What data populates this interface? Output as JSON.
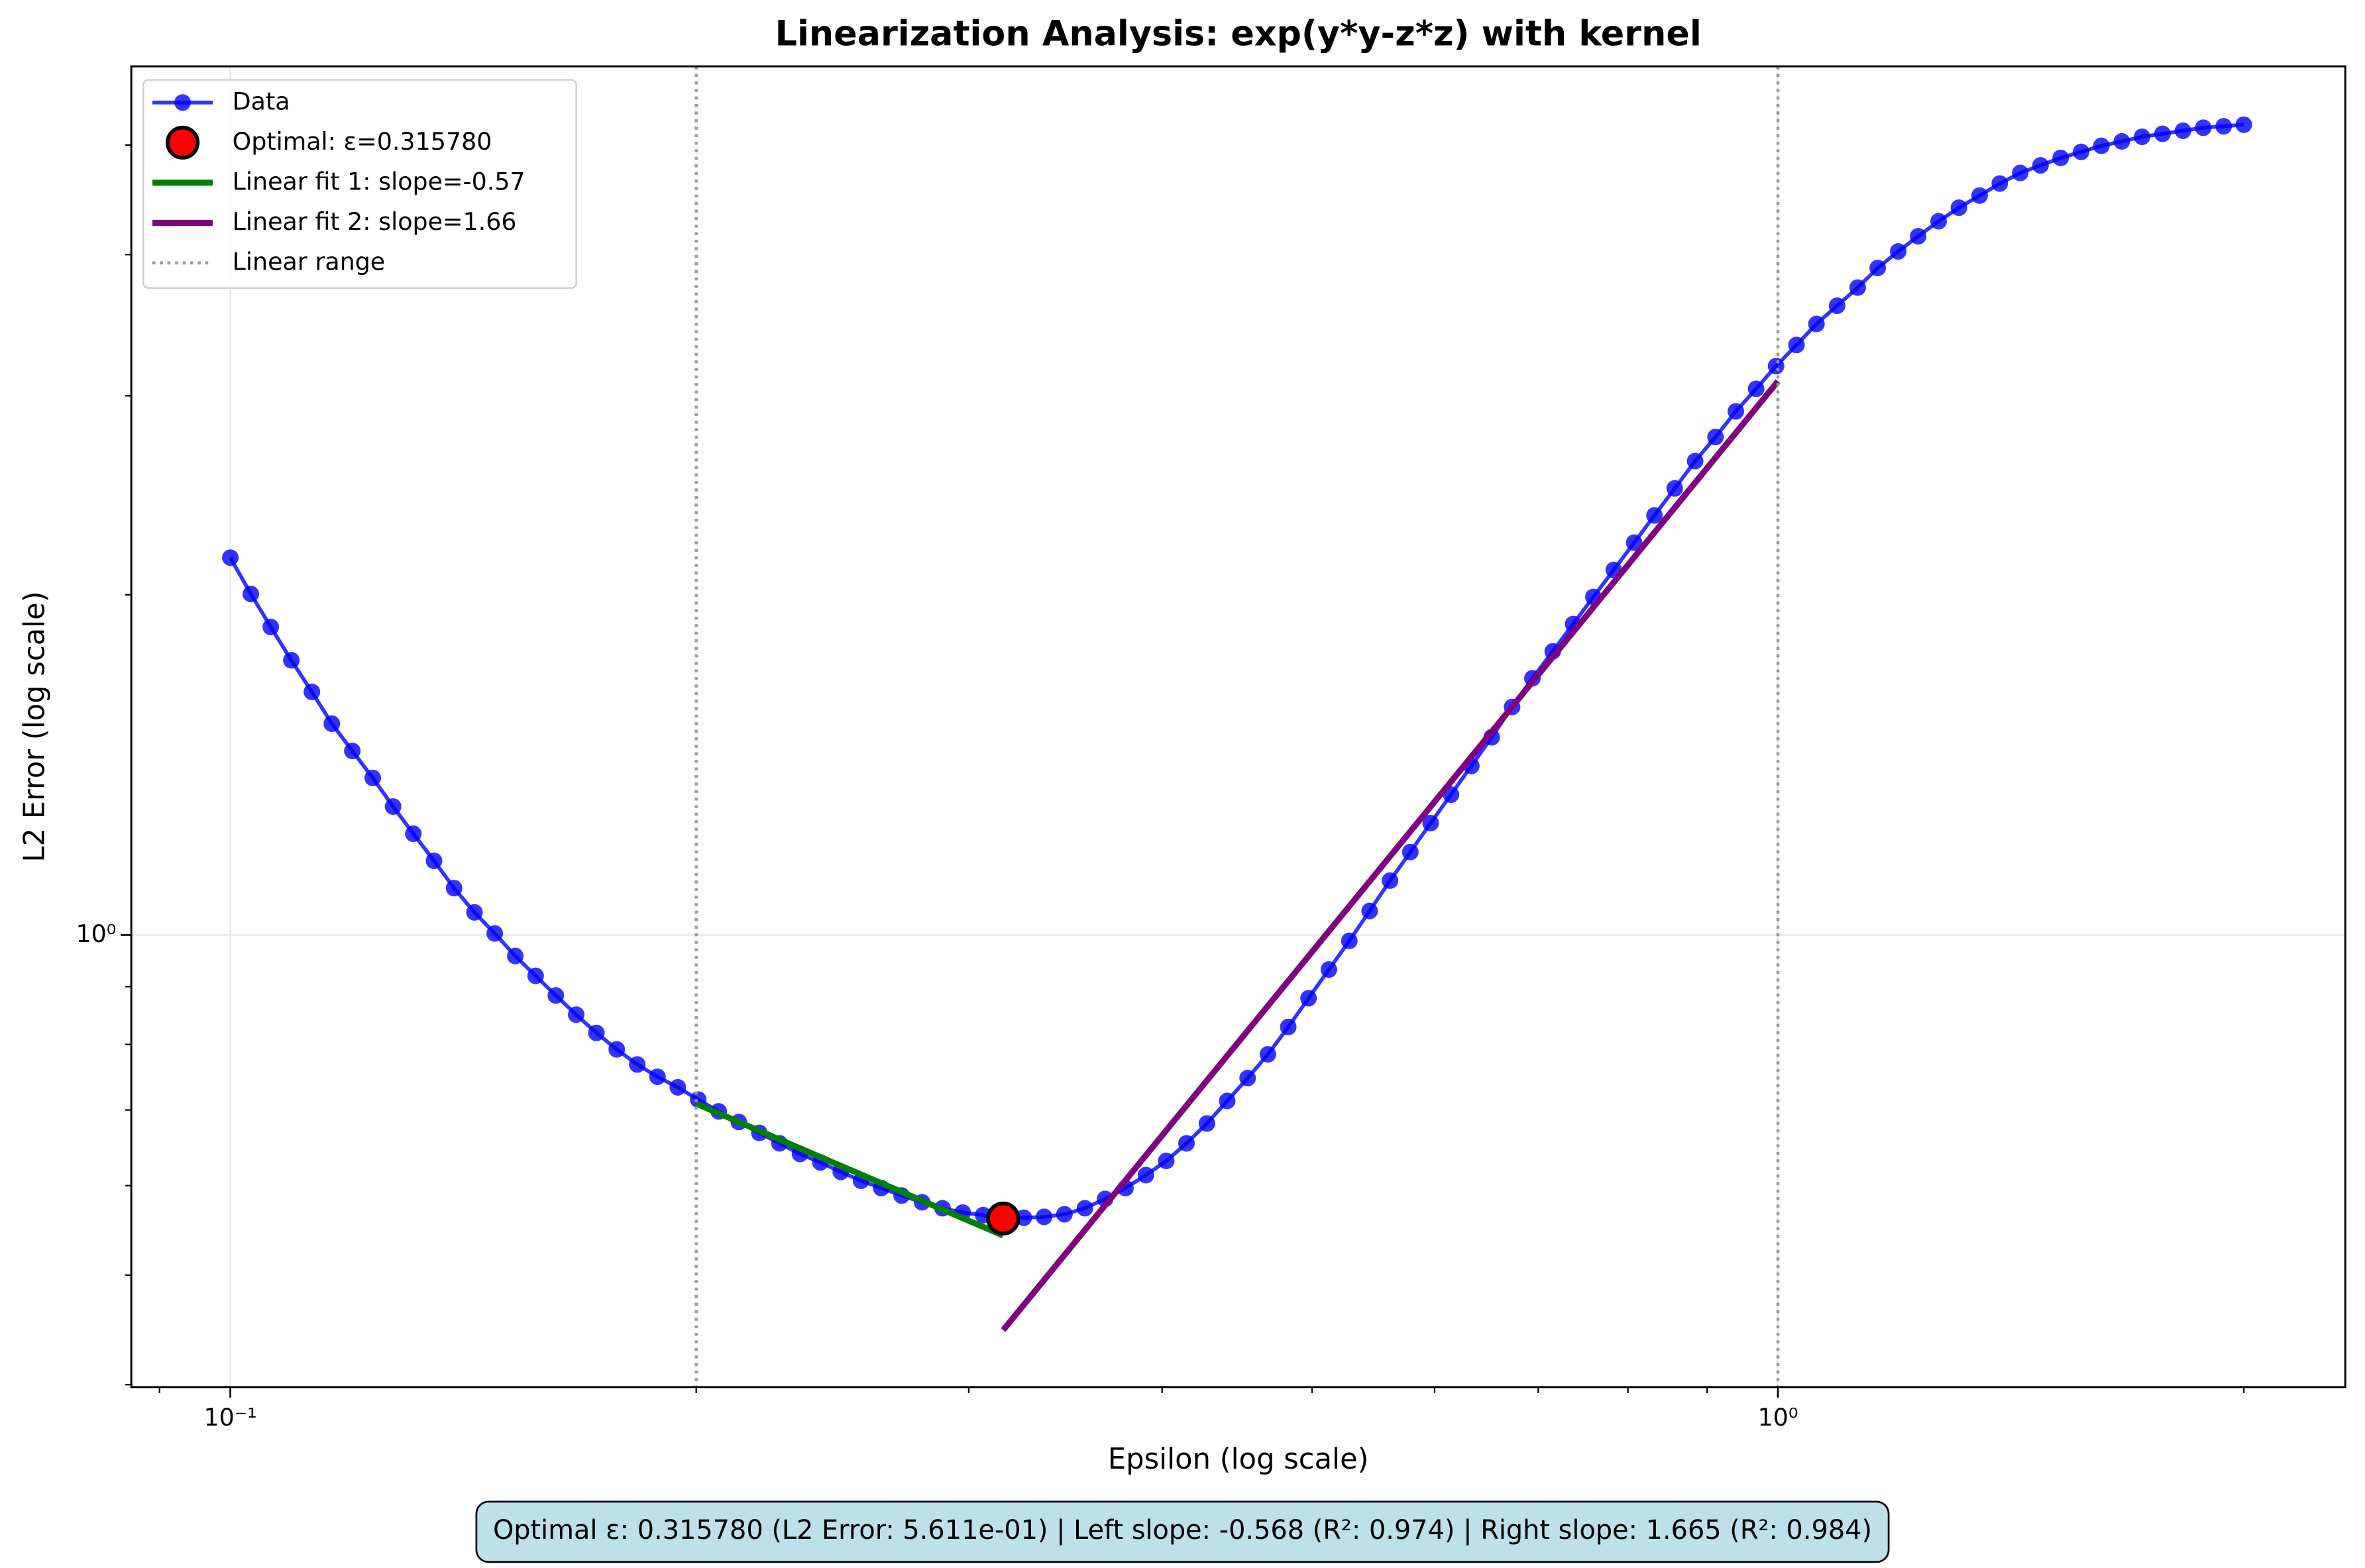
{
  "chart_data": {
    "type": "line",
    "title": "Linearization Analysis: exp(y*y-z*z) with kernel",
    "xlabel": "Epsilon (log scale)",
    "ylabel": "L2 Error (log scale)",
    "xscale": "log",
    "yscale": "log",
    "xlim": [
      0.0863,
      2.326
    ],
    "ylim": [
      0.398,
      5.87
    ],
    "xticks": [
      {
        "value": 0.1,
        "label": "10⁻¹"
      },
      {
        "value": 1,
        "label": "10⁰"
      }
    ],
    "yticks": [
      {
        "value": 1,
        "label": "10⁰"
      }
    ],
    "xminor": [
      0.09,
      0.2,
      0.3,
      0.4,
      0.5,
      0.6,
      0.7,
      0.8,
      0.9,
      2
    ],
    "yminor": [
      0.4,
      0.5,
      0.6,
      0.7,
      0.8,
      0.9,
      2,
      3,
      4,
      5
    ],
    "grid": true,
    "legend": "upper left",
    "series": [
      {
        "name": "Data",
        "color": "#0000ff",
        "marker": "circle",
        "x": [
          0.1,
          0.1031,
          0.1062,
          0.1095,
          0.1129,
          0.1163,
          0.1199,
          0.1236,
          0.1274,
          0.1313,
          0.1354,
          0.1395,
          0.1438,
          0.1482,
          0.1528,
          0.1575,
          0.1623,
          0.1673,
          0.1724,
          0.1777,
          0.1832,
          0.1888,
          0.1946,
          0.2006,
          0.2068,
          0.2131,
          0.2197,
          0.2264,
          0.2334,
          0.2406,
          0.248,
          0.2556,
          0.2634,
          0.2715,
          0.2799,
          0.2885,
          0.2973,
          0.3065,
          0.31578,
          0.3256,
          0.3356,
          0.3459,
          0.3566,
          0.3675,
          0.3788,
          0.3905,
          0.4025,
          0.4148,
          0.4276,
          0.4407,
          0.4543,
          0.4682,
          0.4826,
          0.4974,
          0.5127,
          0.5285,
          0.5447,
          0.5615,
          0.5787,
          0.5965,
          0.6148,
          0.6337,
          0.6532,
          0.6733,
          0.694,
          0.7153,
          0.7373,
          0.7599,
          0.7833,
          0.8074,
          0.8322,
          0.8577,
          0.8841,
          0.9113,
          0.9393,
          0.9681,
          0.9972,
          1.028,
          1.059,
          1.092,
          1.126,
          1.16,
          1.196,
          1.232,
          1.27,
          1.309,
          1.35,
          1.391,
          1.434,
          1.478,
          1.523,
          1.57,
          1.618,
          1.668,
          1.719,
          1.772,
          1.827,
          1.883,
          1.941,
          2.0
        ],
        "values": [
          2.157,
          2.003,
          1.873,
          1.75,
          1.641,
          1.538,
          1.455,
          1.377,
          1.299,
          1.229,
          1.163,
          1.1,
          1.047,
          1.003,
          0.958,
          0.92,
          0.884,
          0.85,
          0.819,
          0.792,
          0.768,
          0.749,
          0.733,
          0.715,
          0.698,
          0.683,
          0.668,
          0.654,
          0.64,
          0.629,
          0.617,
          0.606,
          0.597,
          0.588,
          0.58,
          0.573,
          0.568,
          0.565,
          0.5611,
          0.562,
          0.563,
          0.566,
          0.573,
          0.584,
          0.597,
          0.613,
          0.631,
          0.654,
          0.681,
          0.713,
          0.747,
          0.784,
          0.829,
          0.879,
          0.932,
          0.988,
          1.05,
          1.117,
          1.184,
          1.256,
          1.331,
          1.411,
          1.496,
          1.591,
          1.687,
          1.782,
          1.884,
          1.991,
          2.104,
          2.224,
          2.351,
          2.484,
          2.626,
          2.758,
          2.906,
          3.043,
          3.187,
          3.327,
          3.473,
          3.604,
          3.74,
          3.892,
          4.026,
          4.152,
          4.281,
          4.401,
          4.511,
          4.623,
          4.724,
          4.797,
          4.871,
          4.931,
          4.992,
          5.038,
          5.085,
          5.116,
          5.148,
          5.18,
          5.195,
          5.212
        ]
      },
      {
        "name": "Linear fit 1: slope=-0.57",
        "color": "#008000",
        "x": [
          0.2,
          0.31578
        ],
        "values": [
          0.709,
          0.542
        ]
      },
      {
        "name": "Linear fit 2: slope=1.66",
        "color": "#800080",
        "x": [
          0.31578,
          1.0
        ],
        "values": [
          0.447,
          3.09
        ]
      }
    ],
    "optimal": {
      "name": "Optimal: ε=0.315780",
      "color": "#ff0000",
      "x": 0.31578,
      "y": 0.5611
    },
    "linear_range": {
      "name": "Linear range",
      "color": "#999999",
      "x": [
        0.2,
        1.0
      ]
    },
    "annotation": "Optimal ε: 0.315780 (L2 Error: 5.611e-01) | Left slope: -0.568 (R²: 0.974) | Right slope: 1.665 (R²: 0.984)"
  }
}
